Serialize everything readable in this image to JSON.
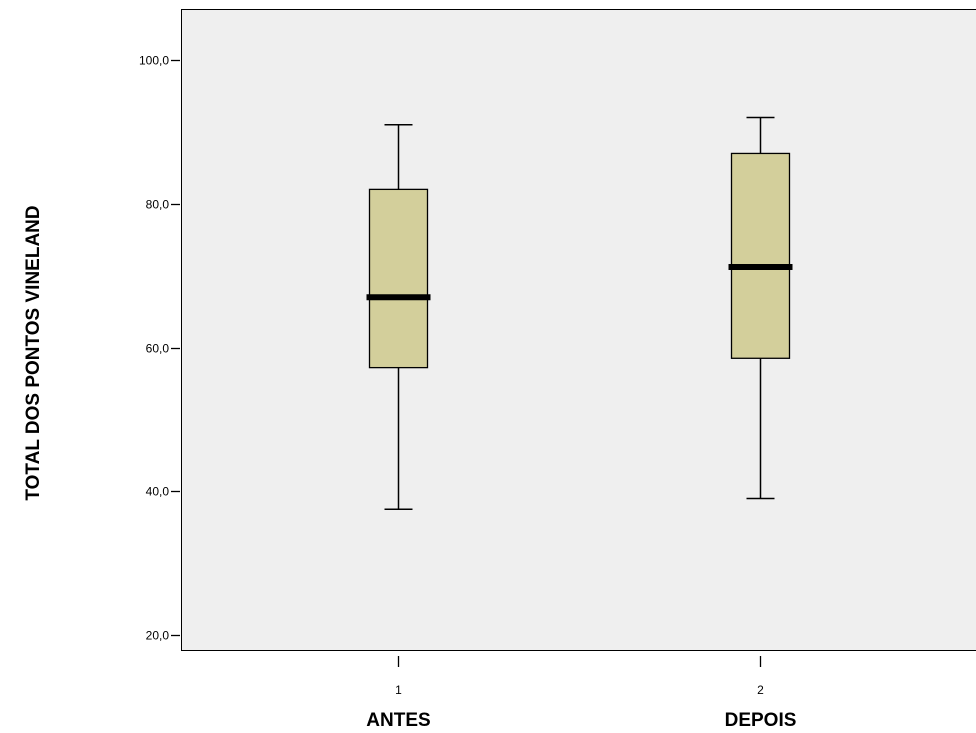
{
  "chart_data": {
    "type": "boxplot",
    "ylabel": "TOTAL  DOS  PONTOS  VINELAND",
    "ylim": [
      20,
      100
    ],
    "yticks": [
      20,
      40,
      60,
      80,
      100
    ],
    "ytick_labels": [
      "20,0",
      "40,0",
      "60,0",
      "80,0",
      "100,0"
    ],
    "categories": [
      {
        "code": "1",
        "name": "ANTES"
      },
      {
        "code": "2",
        "name": "DEPOIS"
      }
    ],
    "boxes": [
      {
        "min": 37.5,
        "q1": 57.2,
        "median": 67,
        "q3": 82,
        "max": 91
      },
      {
        "min": 39,
        "q1": 58.5,
        "median": 71.2,
        "q3": 87,
        "max": 92
      }
    ],
    "box_color": "#d3cf9b",
    "plot_background": "#efefef",
    "grid": false
  }
}
